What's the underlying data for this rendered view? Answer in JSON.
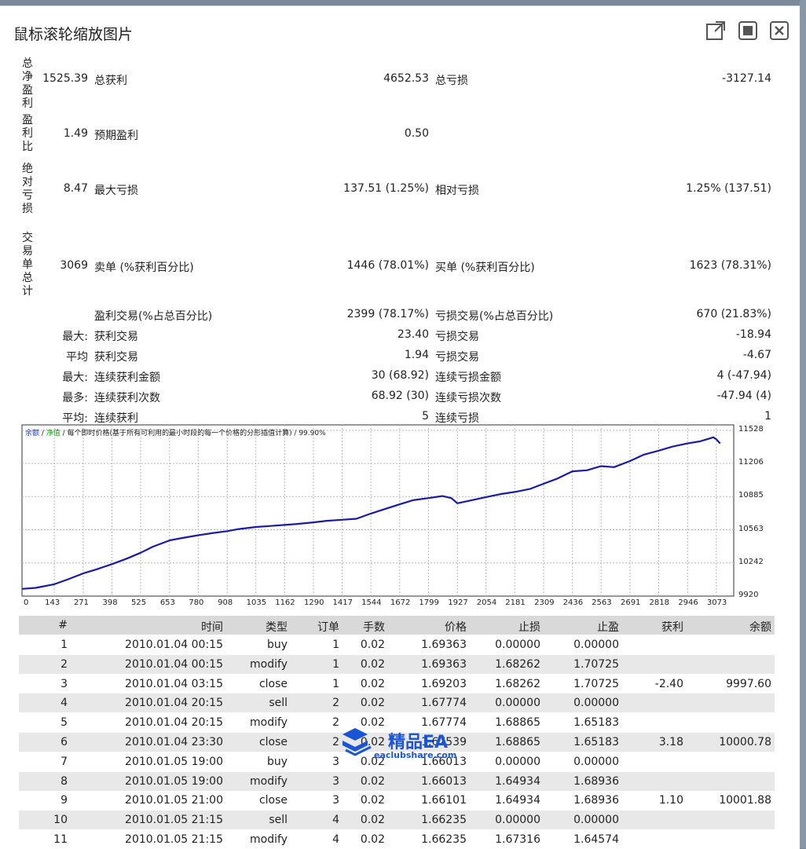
{
  "window": {
    "title": "鼠标滚轮缩放图片",
    "buttons": [
      {
        "name": "open-external",
        "icon": "external-link-icon"
      },
      {
        "name": "fullscreen",
        "icon": "fullscreen-icon"
      },
      {
        "name": "close",
        "icon": "close-icon"
      }
    ]
  },
  "stats": {
    "vertical_labels": [
      "总净盈利",
      "盈利比",
      "绝对亏损",
      "交易单总计"
    ],
    "rows": [
      {
        "c1": "1525.39",
        "l1": "总获利",
        "v1": "4652.53",
        "l2": "总亏损",
        "v2": "-3127.14"
      },
      {
        "c1": "1.49",
        "l1": "预期盈利",
        "v1": "0.50",
        "l2": "",
        "v2": ""
      },
      {
        "c1": "8.47",
        "l1": "最大亏损",
        "v1": "137.51 (1.25%)",
        "l2": "相对亏损",
        "v2": "1.25% (137.51)"
      },
      {
        "c1": "3069",
        "l1": "卖单 (%获利百分比)",
        "v1": "1446 (78.01%)",
        "l2": "买单 (%获利百分比)",
        "v2": "1623 (78.31%)"
      },
      {
        "c1": "",
        "l1": "盈利交易(%占总百分比)",
        "v1": "2399 (78.17%)",
        "l2": "亏损交易(%占总百分比)",
        "v2": "670 (21.83%)"
      },
      {
        "c1": "最大:",
        "l1": "获利交易",
        "v1": "23.40",
        "l2": "亏损交易",
        "v2": "-18.94"
      },
      {
        "c1": "平均",
        "l1": "获利交易",
        "v1": "1.94",
        "l2": "亏损交易",
        "v2": "-4.67"
      },
      {
        "c1": "最大:",
        "l1": "连续获利金额",
        "v1": "30 (68.92)",
        "l2": "连续亏损金额",
        "v2": "4 (-47.94)"
      },
      {
        "c1": "最多:",
        "l1": "连续获利次数",
        "v1": "68.92 (30)",
        "l2": "连续亏损次数",
        "v2": "-47.94 (4)"
      },
      {
        "c1": "平均:",
        "l1": "连续获利",
        "v1": "5",
        "l2": "连续亏损",
        "v2": "1"
      }
    ]
  },
  "chart_data": {
    "type": "line",
    "title": "",
    "legend_text": {
      "balance": "余额",
      "sep1": " / ",
      "equity": "净值",
      "rest": " / 每个即时价格(基于所有可利用的最小时段的每一个价格的分形插值计算) / 99.90%"
    },
    "x_ticks": [
      "0",
      "143",
      "271",
      "398",
      "525",
      "653",
      "780",
      "908",
      "1035",
      "1162",
      "1290",
      "1417",
      "1544",
      "1672",
      "1799",
      "1927",
      "2054",
      "2181",
      "2309",
      "2436",
      "2563",
      "2691",
      "2818",
      "2946",
      "3073"
    ],
    "y_ticks": [
      "11528",
      "11206",
      "10885",
      "10563",
      "10242",
      "9920"
    ],
    "ylim": [
      9920,
      11580
    ],
    "xlim": [
      0,
      3150
    ],
    "grid": true,
    "series": [
      {
        "color": "#1a1aa8",
        "x": [
          0,
          60,
          143,
          200,
          271,
          330,
          398,
          460,
          525,
          580,
          653,
          700,
          780,
          840,
          908,
          960,
          1035,
          1100,
          1162,
          1220,
          1290,
          1350,
          1417,
          1480,
          1544,
          1600,
          1672,
          1730,
          1799,
          1860,
          1900,
          1927,
          1990,
          2054,
          2120,
          2181,
          2250,
          2309,
          2370,
          2436,
          2500,
          2563,
          2620,
          2691,
          2750,
          2818,
          2880,
          2946,
          3000,
          3030,
          3060,
          3073,
          3090
        ],
        "y": [
          9990,
          10000,
          10035,
          10080,
          10140,
          10180,
          10230,
          10280,
          10340,
          10400,
          10460,
          10480,
          10510,
          10530,
          10550,
          10570,
          10590,
          10600,
          10610,
          10620,
          10635,
          10650,
          10660,
          10670,
          10720,
          10760,
          10810,
          10850,
          10870,
          10890,
          10870,
          10820,
          10850,
          10880,
          10910,
          10930,
          10960,
          11010,
          11060,
          11130,
          11140,
          11180,
          11170,
          11230,
          11290,
          11330,
          11370,
          11400,
          11420,
          11440,
          11460,
          11440,
          11400
        ]
      }
    ]
  },
  "trades": {
    "columns": [
      "#",
      "时间",
      "类型",
      "订单",
      "手数",
      "价格",
      "止损",
      "止盈",
      "获利",
      "余额"
    ],
    "rows": [
      [
        "1",
        "2010.01.04 00:15",
        "buy",
        "1",
        "0.02",
        "1.69363",
        "0.00000",
        "0.00000",
        "",
        ""
      ],
      [
        "2",
        "2010.01.04 00:15",
        "modify",
        "1",
        "0.02",
        "1.69363",
        "1.68262",
        "1.70725",
        "",
        ""
      ],
      [
        "3",
        "2010.01.04 03:15",
        "close",
        "1",
        "0.02",
        "1.69203",
        "1.68262",
        "1.70725",
        "-2.40",
        "9997.60"
      ],
      [
        "4",
        "2010.01.04 20:15",
        "sell",
        "2",
        "0.02",
        "1.67774",
        "0.00000",
        "0.00000",
        "",
        ""
      ],
      [
        "5",
        "2010.01.04 20:15",
        "modify",
        "2",
        "0.02",
        "1.67774",
        "1.68865",
        "1.65183",
        "",
        ""
      ],
      [
        "6",
        "2010.01.04 23:30",
        "close",
        "2",
        "0.02",
        "1.67539",
        "1.68865",
        "1.65183",
        "3.18",
        "10000.78"
      ],
      [
        "7",
        "2010.01.05 19:00",
        "buy",
        "3",
        "0.02",
        "1.66013",
        "0.00000",
        "0.00000",
        "",
        ""
      ],
      [
        "8",
        "2010.01.05 19:00",
        "modify",
        "3",
        "0.02",
        "1.66013",
        "1.64934",
        "1.68936",
        "",
        ""
      ],
      [
        "9",
        "2010.01.05 21:00",
        "close",
        "3",
        "0.02",
        "1.66101",
        "1.64934",
        "1.68936",
        "1.10",
        "10001.88"
      ],
      [
        "10",
        "2010.01.05 21:15",
        "sell",
        "4",
        "0.02",
        "1.66235",
        "0.00000",
        "0.00000",
        "",
        ""
      ],
      [
        "11",
        "2010.01.05 21:15",
        "modify",
        "4",
        "0.02",
        "1.66235",
        "1.67316",
        "1.64574",
        "",
        ""
      ]
    ]
  },
  "watermark": {
    "title": "精品EA",
    "subtitle": "eaclubshare.com",
    "color": "#1a55d6"
  }
}
